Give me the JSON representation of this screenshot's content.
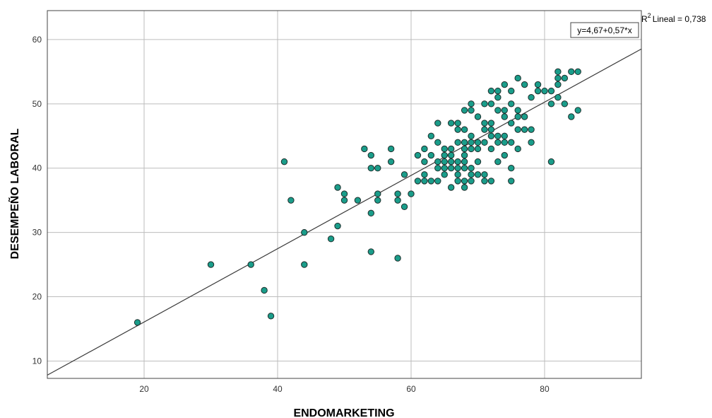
{
  "chart_data": {
    "type": "scatter",
    "xlabel": "ENDOMARKETING",
    "ylabel": "DESEMPEÑO LABORAL",
    "xlim": [
      5.5,
      94.5
    ],
    "ylim": [
      7.3,
      64.5
    ],
    "x_ticks": [
      20,
      40,
      60,
      80
    ],
    "y_ticks": [
      10,
      20,
      30,
      40,
      50,
      60
    ],
    "x_tick_labels": [
      "20",
      "40",
      "60",
      "80"
    ],
    "y_tick_labels": [
      "10",
      "20",
      "30",
      "40",
      "50",
      "60"
    ],
    "grid": true,
    "marker_color": "#1a9d8a",
    "marker_edge": "#1f2d2b",
    "fit_line": {
      "intercept": 4.67,
      "slope": 0.57,
      "equation": "y=4,67+0,57*x",
      "r2_label": "Lineal = 0,738",
      "color": "#3a3a3a"
    },
    "points": [
      [
        19,
        16
      ],
      [
        30,
        25
      ],
      [
        36,
        25
      ],
      [
        38,
        21
      ],
      [
        39,
        17
      ],
      [
        41,
        41
      ],
      [
        42,
        35
      ],
      [
        44,
        30
      ],
      [
        44,
        25
      ],
      [
        48,
        29
      ],
      [
        49,
        37
      ],
      [
        49,
        31
      ],
      [
        50,
        36
      ],
      [
        50,
        35
      ],
      [
        52,
        35
      ],
      [
        53,
        43
      ],
      [
        54,
        42
      ],
      [
        54,
        40
      ],
      [
        54,
        33
      ],
      [
        54,
        27
      ],
      [
        55,
        40
      ],
      [
        55,
        36
      ],
      [
        55,
        35
      ],
      [
        57,
        43
      ],
      [
        57,
        41
      ],
      [
        58,
        36
      ],
      [
        58,
        35
      ],
      [
        58,
        26
      ],
      [
        59,
        39
      ],
      [
        59,
        34
      ],
      [
        60,
        36
      ],
      [
        61,
        42
      ],
      [
        61,
        38
      ],
      [
        62,
        43
      ],
      [
        62,
        41
      ],
      [
        62,
        39
      ],
      [
        62,
        38
      ],
      [
        63,
        45
      ],
      [
        63,
        42
      ],
      [
        63,
        38
      ],
      [
        64,
        47
      ],
      [
        64,
        44
      ],
      [
        64,
        41
      ],
      [
        64,
        40
      ],
      [
        64,
        38
      ],
      [
        65,
        43
      ],
      [
        65,
        42
      ],
      [
        65,
        41
      ],
      [
        65,
        40
      ],
      [
        65,
        39
      ],
      [
        66,
        47
      ],
      [
        66,
        43
      ],
      [
        66,
        42
      ],
      [
        66,
        41
      ],
      [
        66,
        40
      ],
      [
        66,
        37
      ],
      [
        67,
        47
      ],
      [
        67,
        46
      ],
      [
        67,
        44
      ],
      [
        67,
        41
      ],
      [
        67,
        40
      ],
      [
        67,
        39
      ],
      [
        67,
        38
      ],
      [
        68,
        49
      ],
      [
        68,
        46
      ],
      [
        68,
        44
      ],
      [
        68,
        43
      ],
      [
        68,
        42
      ],
      [
        68,
        41
      ],
      [
        68,
        40
      ],
      [
        68,
        38
      ],
      [
        68,
        37
      ],
      [
        69,
        50
      ],
      [
        69,
        49
      ],
      [
        69,
        45
      ],
      [
        69,
        44
      ],
      [
        69,
        43
      ],
      [
        69,
        40
      ],
      [
        69,
        39
      ],
      [
        69,
        38
      ],
      [
        70,
        48
      ],
      [
        70,
        44
      ],
      [
        70,
        43
      ],
      [
        70,
        41
      ],
      [
        70,
        39
      ],
      [
        71,
        50
      ],
      [
        71,
        47
      ],
      [
        71,
        46
      ],
      [
        71,
        44
      ],
      [
        71,
        39
      ],
      [
        71,
        38
      ],
      [
        72,
        52
      ],
      [
        72,
        50
      ],
      [
        72,
        47
      ],
      [
        72,
        46
      ],
      [
        72,
        45
      ],
      [
        72,
        43
      ],
      [
        72,
        38
      ],
      [
        73,
        52
      ],
      [
        73,
        51
      ],
      [
        73,
        49
      ],
      [
        73,
        45
      ],
      [
        73,
        44
      ],
      [
        73,
        41
      ],
      [
        74,
        53
      ],
      [
        74,
        49
      ],
      [
        74,
        48
      ],
      [
        74,
        45
      ],
      [
        74,
        44
      ],
      [
        74,
        42
      ],
      [
        75,
        52
      ],
      [
        75,
        50
      ],
      [
        75,
        47
      ],
      [
        75,
        44
      ],
      [
        75,
        40
      ],
      [
        75,
        38
      ],
      [
        76,
        54
      ],
      [
        76,
        49
      ],
      [
        76,
        48
      ],
      [
        76,
        46
      ],
      [
        76,
        43
      ],
      [
        77,
        53
      ],
      [
        77,
        48
      ],
      [
        77,
        46
      ],
      [
        78,
        51
      ],
      [
        78,
        46
      ],
      [
        78,
        44
      ],
      [
        79,
        53
      ],
      [
        79,
        52
      ],
      [
        80,
        52
      ],
      [
        81,
        52
      ],
      [
        81,
        50
      ],
      [
        81,
        41
      ],
      [
        82,
        55
      ],
      [
        82,
        54
      ],
      [
        82,
        53
      ],
      [
        82,
        51
      ],
      [
        83,
        54
      ],
      [
        83,
        50
      ],
      [
        84,
        55
      ],
      [
        84,
        48
      ],
      [
        85,
        55
      ],
      [
        85,
        49
      ]
    ]
  }
}
